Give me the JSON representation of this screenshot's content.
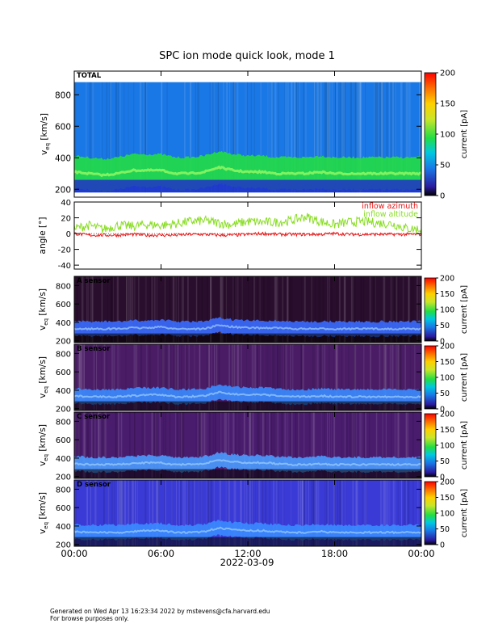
{
  "chart_data": {
    "title": "SPC ion mode quick look, mode 1",
    "x_axis": {
      "ticks": [
        "00:00",
        "06:00",
        "12:00",
        "18:00",
        "00:00"
      ],
      "tick_hours": [
        0,
        6,
        12,
        18,
        24
      ],
      "date_label": "2022-03-09",
      "range_hours": [
        0,
        24
      ]
    },
    "panels": [
      {
        "type": "heatmap",
        "label": "TOTAL",
        "ylabel": "v",
        "ylabel_sub": "eq",
        "ylabel_unit": "[km/s]",
        "ylim": [
          150,
          950
        ],
        "data_ylim": [
          180,
          880
        ],
        "yticks": [
          200,
          400,
          600,
          800
        ],
        "colorbar": {
          "label": "current [pA]",
          "range": [
            0,
            200
          ],
          "ticks": [
            0,
            50,
            100,
            150,
            200
          ],
          "palette": "rainbow"
        },
        "background_color": "#1a78e6",
        "beam_color": "#22dd44",
        "beam_center_kms": [
          310,
          300,
          290,
          300,
          320,
          320,
          320,
          300,
          300,
          310,
          340,
          320,
          310,
          310,
          300,
          300,
          300,
          310,
          300,
          300,
          300,
          300,
          300,
          300,
          300
        ]
      },
      {
        "type": "line",
        "ylabel": "angle [°]",
        "ylim": [
          -45,
          40
        ],
        "yticks": [
          -40,
          -20,
          0,
          20,
          40
        ],
        "series": [
          {
            "name": "inflow azimuth",
            "color": "#ee1111",
            "values": [
              0,
              -2,
              -2,
              -2,
              -1,
              -2,
              -2,
              -2,
              -1,
              -1,
              -2,
              -2,
              -1,
              0,
              -1,
              -1,
              -1,
              -1,
              0,
              -1,
              -1,
              -1,
              -1,
              -1,
              -1
            ]
          },
          {
            "name": "inflow altitude",
            "color": "#88dd22",
            "values": [
              4,
              8,
              3,
              8,
              7,
              9,
              8,
              10,
              13,
              14,
              11,
              9,
              13,
              12,
              12,
              14,
              19,
              13,
              9,
              12,
              13,
              11,
              10,
              4,
              3
            ]
          }
        ]
      },
      {
        "type": "heatmap",
        "label": "A sensor",
        "ylabel": "v",
        "ylabel_sub": "eq",
        "ylabel_unit": "[km/s]",
        "ylim": [
          180,
          900
        ],
        "yticks": [
          200,
          400,
          600,
          800
        ],
        "colorbar": {
          "label": "current [pA]",
          "range": [
            0,
            200
          ],
          "ticks": [
            0,
            50,
            100,
            150,
            200
          ],
          "palette": "rainbow"
        },
        "background_color": "#2a0e2e",
        "beam_color": "#3a6bff",
        "beam_center_kms": [
          330,
          330,
          330,
          330,
          340,
          340,
          350,
          330,
          330,
          330,
          370,
          350,
          340,
          340,
          340,
          330,
          330,
          330,
          330,
          330,
          330,
          330,
          330,
          330,
          330
        ]
      },
      {
        "type": "heatmap",
        "label": "B sensor",
        "ylabel": "v",
        "ylabel_sub": "eq",
        "ylabel_unit": "[km/s]",
        "ylim": [
          180,
          900
        ],
        "yticks": [
          200,
          400,
          600,
          800
        ],
        "colorbar": {
          "label": "current [pA]",
          "range": [
            0,
            200
          ],
          "ticks": [
            0,
            50,
            100,
            150,
            200
          ],
          "palette": "rainbow"
        },
        "background_color": "#4a1c66",
        "beam_color": "#3a8bff",
        "beam_center_kms": [
          340,
          330,
          330,
          330,
          340,
          350,
          350,
          330,
          330,
          340,
          380,
          360,
          350,
          350,
          340,
          330,
          330,
          340,
          330,
          330,
          330,
          330,
          330,
          330,
          330
        ]
      },
      {
        "type": "heatmap",
        "label": "C sensor",
        "ylabel": "v",
        "ylabel_sub": "eq",
        "ylabel_unit": "[km/s]",
        "ylim": [
          180,
          900
        ],
        "yticks": [
          200,
          400,
          600,
          800
        ],
        "colorbar": {
          "label": "current [pA]",
          "range": [
            0,
            200
          ],
          "ticks": [
            0,
            50,
            100,
            150,
            200
          ],
          "palette": "rainbow"
        },
        "background_color": "#4a1c6e",
        "beam_color": "#4a9bff",
        "beam_center_kms": [
          340,
          330,
          330,
          330,
          340,
          350,
          350,
          330,
          330,
          340,
          380,
          360,
          350,
          350,
          340,
          330,
          330,
          340,
          330,
          330,
          330,
          330,
          330,
          330,
          330
        ]
      },
      {
        "type": "heatmap",
        "label": "D sensor",
        "ylabel": "v",
        "ylabel_sub": "eq",
        "ylabel_unit": "[km/s]",
        "ylim": [
          180,
          900
        ],
        "yticks": [
          200,
          400,
          600,
          800
        ],
        "colorbar": {
          "label": "current [pA]",
          "range": [
            0,
            200
          ],
          "ticks": [
            0,
            50,
            100,
            150,
            200
          ],
          "palette": "rainbow"
        },
        "background_color": "#3a3ad6",
        "beam_color": "#3a8bff",
        "beam_center_kms": [
          340,
          330,
          330,
          330,
          340,
          350,
          350,
          330,
          330,
          340,
          380,
          360,
          350,
          350,
          340,
          330,
          330,
          340,
          330,
          330,
          330,
          330,
          330,
          330,
          330
        ]
      }
    ]
  },
  "footer": {
    "line1": "Generated on Wed Apr 13 16:23:34 2022 by mstevens@cfa.harvard.edu",
    "line2": "For browse purposes only."
  }
}
